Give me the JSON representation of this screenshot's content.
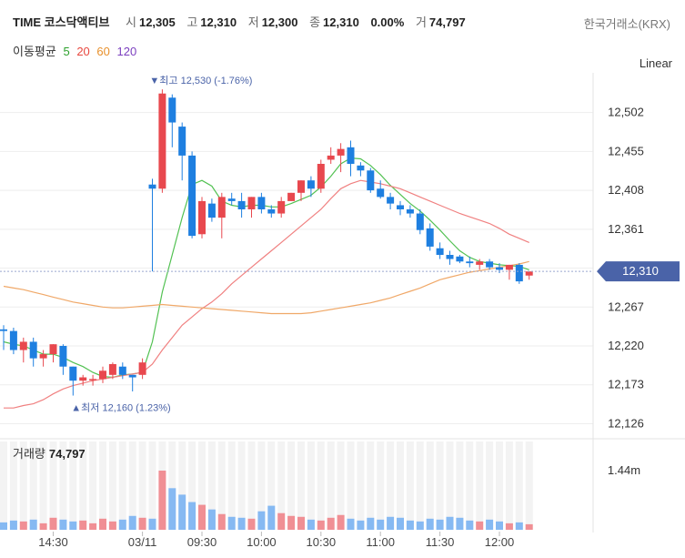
{
  "header": {
    "ticker": "TIME 코스닥액티브",
    "ohlc": [
      {
        "label": "시",
        "value": "12,305"
      },
      {
        "label": "고",
        "value": "12,310"
      },
      {
        "label": "저",
        "value": "12,300"
      },
      {
        "label": "종",
        "value": "12,310"
      }
    ],
    "change_pct": "0.00%",
    "volume_label": "거",
    "volume_value": "74,797",
    "exchange": "한국거래소(KRX)"
  },
  "ma_legend": {
    "title": "이동평균",
    "periods": [
      {
        "label": "5",
        "color": "#2ca02c"
      },
      {
        "label": "20",
        "color": "#e8483f"
      },
      {
        "label": "60",
        "color": "#e8902b"
      },
      {
        "label": "120",
        "color": "#7b3fbf"
      }
    ]
  },
  "scale_button": "Linear",
  "colors": {
    "up": "#e8484e",
    "down": "#1e7fe0",
    "up_vol": "#f08f94",
    "down_vol": "#86b9f2",
    "price_tag": "#4a63a8"
  },
  "chart_data": {
    "type": "candlestick",
    "y_ticks": [
      "12,502",
      "12,455",
      "12,408",
      "12,361",
      "12,267",
      "12,220",
      "12,173",
      "12,126"
    ],
    "y_tick_values": [
      12502,
      12455,
      12408,
      12361,
      12267,
      12220,
      12173,
      12126
    ],
    "ylim": [
      12110,
      12550
    ],
    "x_ticks": [
      {
        "label": "14:30",
        "index": 5
      },
      {
        "label": "03/11",
        "index": 14
      },
      {
        "label": "09:30",
        "index": 20
      },
      {
        "label": "10:00",
        "index": 26
      },
      {
        "label": "10:30",
        "index": 32
      },
      {
        "label": "11:00",
        "index": 38
      },
      {
        "label": "11:30",
        "index": 44
      },
      {
        "label": "12:00",
        "index": 50
      }
    ],
    "current_price": {
      "label": "12,310",
      "value": 12310
    },
    "high_annotation": {
      "label": "▼최고 12,530 (-1.76%)",
      "index": 16,
      "value": 12530
    },
    "low_annotation": {
      "label": "▲최저 12,160 (1.23%)",
      "index": 7,
      "value": 12160
    },
    "candles": [
      [
        12240,
        12245,
        12215,
        12238
      ],
      [
        12238,
        12242,
        12210,
        12215
      ],
      [
        12215,
        12230,
        12200,
        12225
      ],
      [
        12225,
        12230,
        12195,
        12205
      ],
      [
        12205,
        12215,
        12195,
        12210
      ],
      [
        12210,
        12222,
        12200,
        12222
      ],
      [
        12220,
        12222,
        12185,
        12195
      ],
      [
        12195,
        12195,
        12160,
        12178
      ],
      [
        12178,
        12185,
        12172,
        12182
      ],
      [
        12180,
        12185,
        12172,
        12180
      ],
      [
        12180,
        12195,
        12175,
        12190
      ],
      [
        12185,
        12200,
        12180,
        12198
      ],
      [
        12195,
        12200,
        12180,
        12185
      ],
      [
        12185,
        12185,
        12165,
        12182
      ],
      [
        12185,
        12205,
        12180,
        12200
      ],
      [
        12415,
        12422,
        12310,
        12410
      ],
      [
        12410,
        12530,
        12405,
        12525
      ],
      [
        12520,
        12524,
        12460,
        12490
      ],
      [
        12485,
        12490,
        12420,
        12450
      ],
      [
        12450,
        12455,
        12350,
        12353
      ],
      [
        12355,
        12400,
        12350,
        12395
      ],
      [
        12392,
        12398,
        12370,
        12375
      ],
      [
        12375,
        12405,
        12350,
        12400
      ],
      [
        12398,
        12405,
        12390,
        12395
      ],
      [
        12395,
        12405,
        12375,
        12385
      ],
      [
        12385,
        12400,
        12375,
        12400
      ],
      [
        12400,
        12405,
        12380,
        12385
      ],
      [
        12385,
        12390,
        12375,
        12380
      ],
      [
        12380,
        12400,
        12375,
        12395
      ],
      [
        12395,
        12405,
        12395,
        12405
      ],
      [
        12405,
        12420,
        12395,
        12420
      ],
      [
        12420,
        12425,
        12400,
        12410
      ],
      [
        12410,
        12445,
        12405,
        12440
      ],
      [
        12445,
        12460,
        12440,
        12450
      ],
      [
        12450,
        12465,
        12430,
        12458
      ],
      [
        12460,
        12468,
        12425,
        12440
      ],
      [
        12438,
        12442,
        12425,
        12432
      ],
      [
        12432,
        12435,
        12405,
        12408
      ],
      [
        12410,
        12420,
        12398,
        12400
      ],
      [
        12400,
        12405,
        12385,
        12392
      ],
      [
        12390,
        12395,
        12378,
        12385
      ],
      [
        12385,
        12390,
        12375,
        12380
      ],
      [
        12380,
        12385,
        12355,
        12360
      ],
      [
        12362,
        12368,
        12335,
        12340
      ],
      [
        12338,
        12345,
        12325,
        12330
      ],
      [
        12330,
        12335,
        12318,
        12325
      ],
      [
        12328,
        12330,
        12320,
        12322
      ],
      [
        12322,
        12328,
        12315,
        12320
      ],
      [
        12318,
        12325,
        12312,
        12322
      ],
      [
        12322,
        12325,
        12312,
        12315
      ],
      [
        12315,
        12320,
        12308,
        12312
      ],
      [
        12312,
        12318,
        12300,
        12318
      ],
      [
        12318,
        12320,
        12295,
        12298
      ],
      [
        12305,
        12310,
        12300,
        12310
      ]
    ],
    "volume": [
      8,
      10,
      9,
      11,
      7,
      13,
      11,
      9,
      10,
      7,
      12,
      9,
      11,
      15,
      13,
      12,
      64,
      45,
      38,
      30,
      27,
      22,
      17,
      14,
      13,
      12,
      20,
      26,
      18,
      15,
      14,
      11,
      10,
      13,
      16,
      12,
      10,
      13,
      11,
      14,
      13,
      10,
      9,
      12,
      11,
      14,
      13,
      10,
      9,
      11,
      9,
      7,
      8,
      6
    ],
    "volume_label": "1.44m",
    "ma": {
      "5": [
        12225,
        12222,
        12220,
        12215,
        12210,
        12210,
        12206,
        12200,
        12195,
        12188,
        12183,
        12182,
        12185,
        12186,
        12188,
        12225,
        12285,
        12330,
        12375,
        12415,
        12420,
        12413,
        12395,
        12390,
        12388,
        12390,
        12390,
        12388,
        12388,
        12392,
        12397,
        12402,
        12412,
        12425,
        12440,
        12447,
        12446,
        12438,
        12427,
        12414,
        12403,
        12392,
        12383,
        12372,
        12360,
        12347,
        12335,
        12327,
        12322,
        12320,
        12318,
        12317,
        12316,
        12312
      ],
      "20": [
        12145,
        12145,
        12148,
        12150,
        12155,
        12162,
        12168,
        12172,
        12175,
        12178,
        12180,
        12182,
        12184,
        12186,
        12188,
        12198,
        12215,
        12230,
        12245,
        12255,
        12265,
        12273,
        12283,
        12295,
        12305,
        12315,
        12325,
        12335,
        12345,
        12355,
        12365,
        12375,
        12385,
        12398,
        12410,
        12416,
        12420,
        12418,
        12416,
        12413,
        12410,
        12405,
        12400,
        12395,
        12390,
        12385,
        12380,
        12376,
        12372,
        12368,
        12362,
        12355,
        12350,
        12345
      ],
      "60": [
        12292,
        12290,
        12288,
        12285,
        12282,
        12279,
        12276,
        12273,
        12271,
        12269,
        12267,
        12266,
        12266,
        12267,
        12268,
        12269,
        12270,
        12269,
        12268,
        12267,
        12266,
        12265,
        12264,
        12263,
        12262,
        12261,
        12260,
        12259,
        12259,
        12259,
        12259,
        12260,
        12262,
        12264,
        12266,
        12268,
        12270,
        12272,
        12275,
        12278,
        12282,
        12286,
        12290,
        12295,
        12300,
        12303,
        12306,
        12309,
        12311,
        12313,
        12315,
        12317,
        12319,
        12322
      ]
    }
  },
  "volume_panel": {
    "title": "거래량",
    "value": "74,797"
  }
}
